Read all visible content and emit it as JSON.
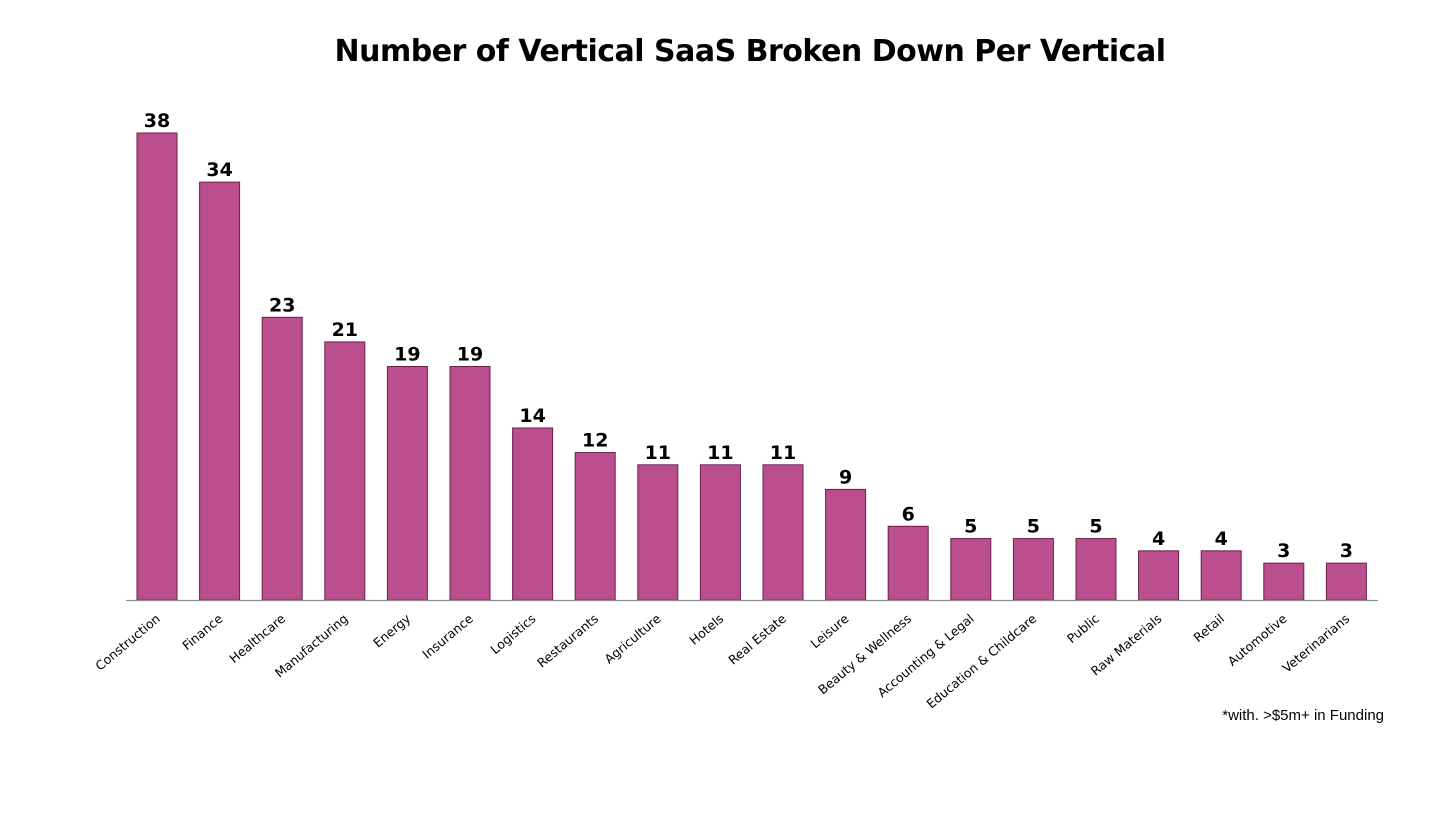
{
  "chart_data": {
    "type": "bar",
    "title": "Number of Vertical SaaS Broken Down Per Vertical",
    "categories": [
      "Construction",
      "Finance",
      "Healthcare",
      "Manufacturing",
      "Energy",
      "Insurance",
      "Logistics",
      "Restaurants",
      "Agriculture",
      "Hotels",
      "Real Estate",
      "Leisure",
      "Beauty & Wellness",
      "Accounting & Legal",
      "Education & Childcare",
      "Public",
      "Raw Materials",
      "Retail",
      "Automotive",
      "Veterinarians"
    ],
    "values": [
      38,
      34,
      23,
      21,
      19,
      19,
      14,
      12,
      11,
      11,
      11,
      9,
      6,
      5,
      5,
      5,
      4,
      4,
      3,
      3
    ],
    "bar_color": "#bb4f8e",
    "bar_edge_color": "#6a1f4b",
    "axis_color": "#8a8a8a",
    "xlabel": "",
    "ylabel": "",
    "ylim": [
      0,
      38
    ],
    "grid": false,
    "legend": "none",
    "footnote": "*with. >$5m+ in Funding"
  }
}
